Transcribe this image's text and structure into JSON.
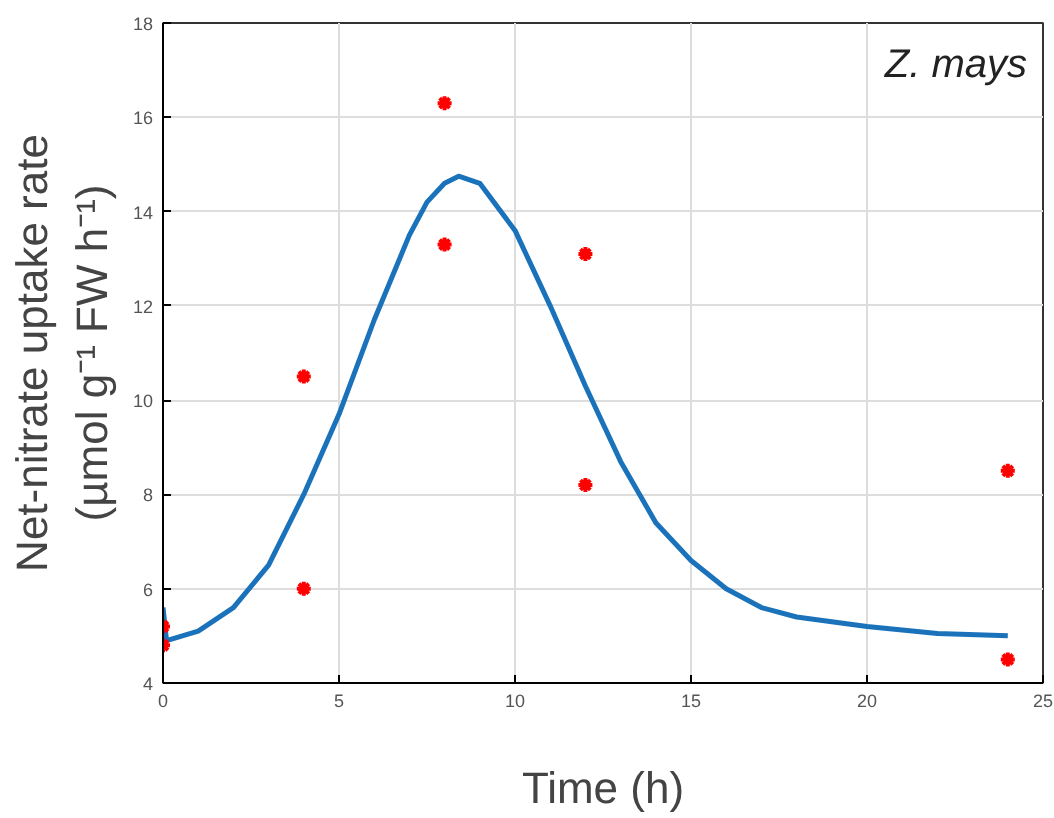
{
  "chart_data": {
    "type": "scatter",
    "title": "Z. mays",
    "xlabel": "Time (h)",
    "ylabel": "Net-nitrate uptake rate\n(µmol g⁻¹ FW h⁻¹)",
    "xlim": [
      0,
      25
    ],
    "ylim": [
      4,
      18
    ],
    "xticks": [
      0,
      5,
      10,
      15,
      20,
      25
    ],
    "yticks": [
      4,
      6,
      8,
      10,
      12,
      14,
      16,
      18
    ],
    "grid": true,
    "series": [
      {
        "type": "line",
        "color": "#1a72bb",
        "line_style": "solid",
        "x": [
          0,
          0.1,
          1,
          2,
          3,
          4,
          5,
          6,
          7,
          7.5,
          8,
          8.4,
          9,
          10,
          11,
          12,
          13,
          14,
          15,
          16,
          17,
          18,
          20,
          22,
          24
        ],
        "values": [
          5.6,
          4.9,
          5.1,
          5.6,
          6.5,
          8.0,
          9.7,
          11.7,
          13.5,
          14.2,
          14.6,
          14.75,
          14.6,
          13.6,
          12.0,
          10.3,
          8.7,
          7.4,
          6.6,
          6.0,
          5.6,
          5.4,
          5.2,
          5.05,
          5.0
        ]
      },
      {
        "color": "#ff0000",
        "marker": "cross",
        "x": [
          0,
          0,
          4,
          4,
          8,
          8,
          12,
          12,
          24,
          24
        ],
        "values": [
          5.2,
          4.8,
          10.5,
          6.0,
          16.3,
          13.3,
          13.1,
          8.2,
          8.5,
          4.5
        ]
      }
    ]
  }
}
